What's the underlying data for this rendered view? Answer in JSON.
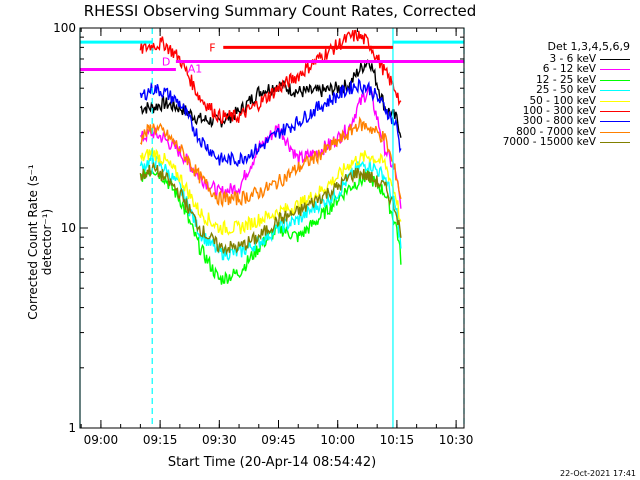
{
  "chart_data": {
    "type": "line",
    "title": "RHESSI Observing Summary Count Rates, Corrected",
    "xlabel": "Start Time (20-Apr-14 08:54:42)",
    "ylabel": "Corrected Count Rate (s⁻¹ detector⁻¹)",
    "y_scale": "log",
    "ylim": [
      1,
      100
    ],
    "xlim": [
      "08:54:42",
      "10:32:00"
    ],
    "x_ticks": [
      "09:00",
      "09:15",
      "09:30",
      "09:45",
      "10:00",
      "10:15",
      "10:30"
    ],
    "y_ticks": [
      "1",
      "10",
      "100"
    ],
    "legend_header": "Det 1,3,4,5,6,9",
    "legend_placement": "right",
    "timestamp": "22-Oct-2021 17:41",
    "annotations": [
      {
        "label": "F",
        "color": "#ff0000",
        "start": "09:31",
        "end": "10:14",
        "y": 80
      },
      {
        "label": "D",
        "color": "#ff00ff",
        "start": "09:19",
        "end": "09:21",
        "y": 68
      },
      {
        "label": "A1",
        "color": "#ff00ff",
        "start": "09:21",
        "end": "10:32",
        "y": 68
      }
    ],
    "attenuator_marks": [
      {
        "color": "#ff00ff",
        "start": "08:54:42",
        "end": "09:19",
        "y": 62
      }
    ],
    "night_bars": [
      {
        "color": "#00ffff",
        "start": "08:54:42",
        "end": "09:13",
        "y": 85
      },
      {
        "color": "#00ffff",
        "start": "10:14",
        "end": "10:32",
        "y": 85
      }
    ],
    "vertical_lines": [
      {
        "time": "08:54:42",
        "color": "#00ffff",
        "style": "solid"
      },
      {
        "time": "09:13",
        "color": "#00ffff",
        "style": "dashed"
      },
      {
        "time": "10:14",
        "color": "#00ffff",
        "style": "solid"
      },
      {
        "time": "10:32",
        "color": "#00ffff",
        "style": "dashed"
      }
    ],
    "time_points": [
      "09:10",
      "09:13",
      "09:16",
      "09:20",
      "09:25",
      "09:30",
      "09:35",
      "09:40",
      "09:45",
      "09:50",
      "09:55",
      "10:00",
      "10:03",
      "10:05",
      "10:08",
      "10:12",
      "10:15",
      "10:16"
    ],
    "series": [
      {
        "name": "3 - 6 keV",
        "color": "#000000",
        "values": [
          40,
          40,
          42,
          40,
          35,
          34,
          38,
          48,
          52,
          48,
          48,
          50,
          52,
          60,
          70,
          40,
          35,
          30
        ]
      },
      {
        "name": "6 - 12 keV",
        "color": "#ff00ff",
        "values": [
          28,
          30,
          28,
          24,
          18,
          15,
          16,
          25,
          32,
          22,
          24,
          28,
          32,
          40,
          50,
          25,
          18,
          12
        ]
      },
      {
        "name": "12 - 25 keV",
        "color": "#00ff00",
        "values": [
          18,
          20,
          18,
          14,
          8,
          5.5,
          6,
          8,
          10,
          9,
          11,
          14,
          16,
          17,
          18,
          15,
          10,
          7
        ]
      },
      {
        "name": "25 - 50 keV",
        "color": "#00ffff",
        "values": [
          20,
          22,
          20,
          16,
          9.5,
          7.5,
          7.5,
          8.5,
          10,
          11,
          13,
          15,
          18,
          20,
          21,
          18,
          12,
          8
        ]
      },
      {
        "name": "50 - 100 keV",
        "color": "#ffff00",
        "values": [
          22,
          24,
          22,
          18,
          12,
          10,
          10,
          11,
          12,
          13,
          15,
          18,
          21,
          22,
          23,
          21,
          14,
          10
        ]
      },
      {
        "name": "100 - 300 keV",
        "color": "#ff0000",
        "values": [
          78,
          82,
          84,
          70,
          45,
          36,
          36,
          42,
          50,
          58,
          70,
          82,
          90,
          92,
          84,
          60,
          48,
          40
        ]
      },
      {
        "name": "300 - 800 keV",
        "color": "#0000ff",
        "values": [
          45,
          50,
          48,
          42,
          28,
          22,
          22,
          25,
          30,
          34,
          40,
          46,
          50,
          52,
          50,
          40,
          32,
          24
        ]
      },
      {
        "name": "800 - 7000 keV",
        "color": "#ff8000",
        "values": [
          28,
          32,
          30,
          25,
          18,
          14,
          14,
          15,
          17,
          20,
          23,
          27,
          30,
          33,
          32,
          28,
          18,
          14
        ]
      },
      {
        "name": "7000 - 15000 keV",
        "color": "#808000",
        "values": [
          18,
          20,
          18,
          15,
          10,
          8,
          8,
          9,
          11,
          12,
          14,
          16,
          18,
          19,
          18,
          16,
          12,
          9
        ]
      }
    ]
  }
}
